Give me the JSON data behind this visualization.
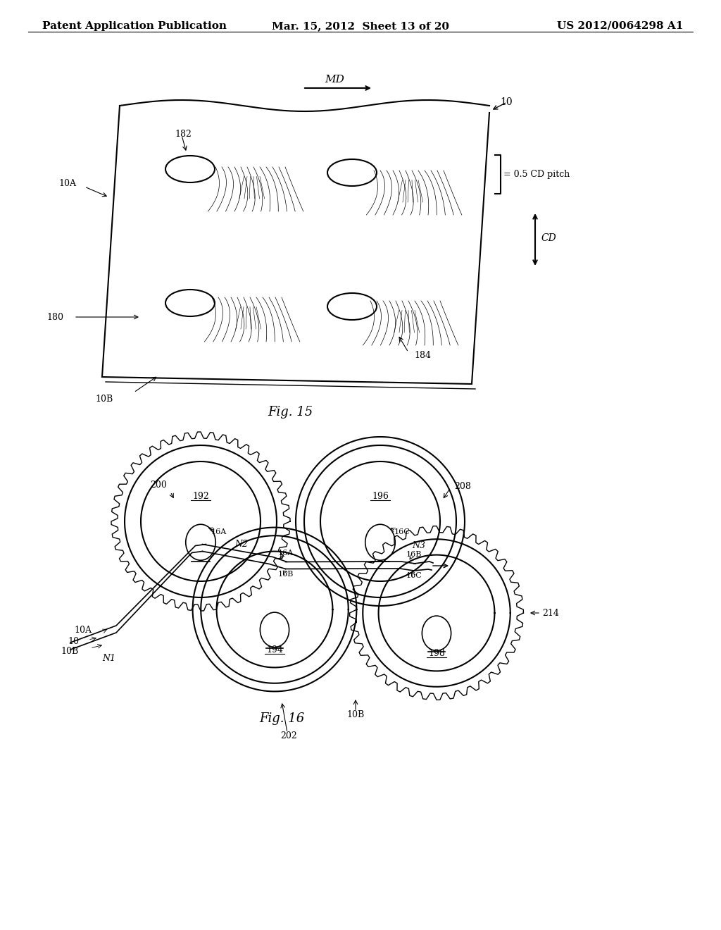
{
  "header_left": "Patent Application Publication",
  "header_mid": "Mar. 15, 2012  Sheet 13 of 20",
  "header_right": "US 2012/0064298 A1",
  "fig15_caption": "Fig. 15",
  "fig16_caption": "Fig. 16",
  "bg_color": "#ffffff",
  "line_color": "#000000",
  "font_size_header": 11,
  "font_size_label": 10,
  "font_size_caption": 13
}
